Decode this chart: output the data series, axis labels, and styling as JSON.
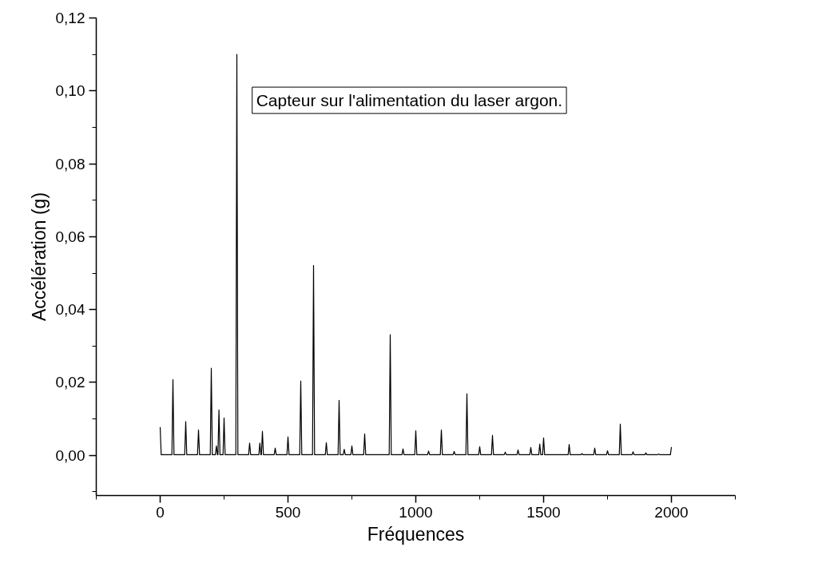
{
  "chart_data": {
    "type": "line",
    "xlabel": "Fréquences",
    "ylabel": "Accélération (g)",
    "annotations": [
      "Capteur sur l'alimentation du laser argon."
    ],
    "x": [
      0,
      4,
      46,
      50,
      54,
      96,
      100,
      104,
      146,
      150,
      154,
      196,
      200,
      204,
      216,
      220,
      224,
      226,
      230,
      234,
      246,
      250,
      254,
      296,
      300,
      304,
      346,
      350,
      354,
      386,
      390,
      394,
      396,
      400,
      404,
      446,
      450,
      454,
      496,
      500,
      504,
      546,
      550,
      554,
      596,
      600,
      604,
      646,
      650,
      654,
      696,
      700,
      704,
      716,
      720,
      724,
      746,
      750,
      754,
      796,
      800,
      804,
      896,
      900,
      904,
      946,
      950,
      954,
      996,
      1000,
      1004,
      1046,
      1050,
      1054,
      1096,
      1100,
      1104,
      1146,
      1150,
      1154,
      1196,
      1200,
      1204,
      1246,
      1250,
      1254,
      1296,
      1300,
      1304,
      1346,
      1350,
      1354,
      1396,
      1400,
      1404,
      1446,
      1450,
      1454,
      1481,
      1485,
      1489,
      1496,
      1500,
      1504,
      1596,
      1600,
      1604,
      1646,
      1650,
      1654,
      1696,
      1700,
      1704,
      1746,
      1750,
      1754,
      1796,
      1800,
      1804,
      1846,
      1850,
      1854,
      1896,
      1900,
      1904,
      1946,
      1950,
      1954,
      1996,
      2000
    ],
    "series": [
      {
        "color": "#000000",
        "values": [
          0.0078,
          0.0002,
          0.0002,
          0.0208,
          0.0002,
          0.0002,
          0.0093,
          0.0002,
          0.0002,
          0.007,
          0.0002,
          0.0002,
          0.0239,
          0.0002,
          0.0002,
          0.0026,
          0.0002,
          0.0002,
          0.0125,
          0.0002,
          0.0002,
          0.0103,
          0.0002,
          0.0002,
          0.11,
          0.0002,
          0.0002,
          0.0034,
          0.0002,
          0.0002,
          0.0034,
          0.0002,
          0.0002,
          0.0066,
          0.0002,
          0.0002,
          0.002,
          0.0002,
          0.0002,
          0.0051,
          0.0002,
          0.0002,
          0.0204,
          0.0002,
          0.0002,
          0.0521,
          0.0002,
          0.0002,
          0.0035,
          0.0002,
          0.0002,
          0.0151,
          0.0002,
          0.0002,
          0.0017,
          0.0002,
          0.0002,
          0.0026,
          0.0002,
          0.0002,
          0.0059,
          0.0002,
          0.0002,
          0.0331,
          0.0002,
          0.0002,
          0.0018,
          0.0002,
          0.0002,
          0.0068,
          0.0002,
          0.0002,
          0.0012,
          0.0002,
          0.0002,
          0.007,
          0.0002,
          0.0002,
          0.0011,
          0.0002,
          0.0002,
          0.0169,
          0.0002,
          0.0002,
          0.0024,
          0.0002,
          0.0002,
          0.0055,
          0.0002,
          0.0002,
          0.0009,
          0.0002,
          0.0002,
          0.0015,
          0.0002,
          0.0002,
          0.0022,
          0.0002,
          0.0002,
          0.0031,
          0.0002,
          0.0002,
          0.0048,
          0.0002,
          0.0002,
          0.003,
          0.0002,
          0.0002,
          0.0005,
          0.0002,
          0.0002,
          0.002,
          0.0002,
          0.0002,
          0.0013,
          0.0002,
          0.0002,
          0.0086,
          0.0002,
          0.0002,
          0.001,
          0.0002,
          0.0002,
          0.0007,
          0.0002,
          0.0002,
          0.0004,
          0.0002,
          0.0002,
          0.0023
        ]
      }
    ],
    "xlim": [
      -250,
      2250
    ],
    "ylim": [
      -0.011,
      0.12
    ],
    "xticks": [
      0,
      500,
      1000,
      1500,
      2000
    ],
    "yticks": [
      {
        "value": 0,
        "label": "0,00"
      },
      {
        "value": 0.02,
        "label": "0,02"
      },
      {
        "value": 0.04,
        "label": "0,04"
      },
      {
        "value": 0.06,
        "label": "0,06"
      },
      {
        "value": 0.08,
        "label": "0,08"
      },
      {
        "value": 0.1,
        "label": "0,10"
      },
      {
        "value": 0.12,
        "label": "0,12"
      }
    ],
    "grid": false,
    "marker": "none",
    "line_style": "solid"
  }
}
